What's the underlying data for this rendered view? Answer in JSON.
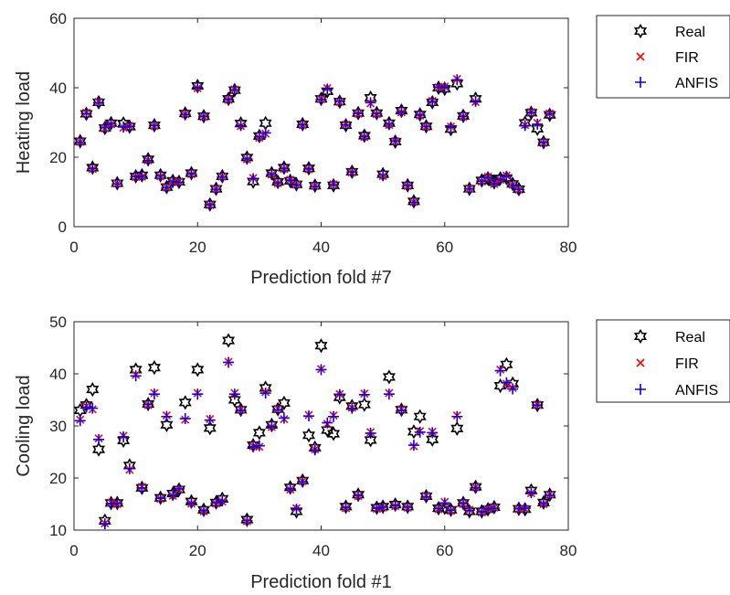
{
  "colors": {
    "real": "#000000",
    "fir": "#ff0000",
    "anfis": "#0000ff",
    "axis": "#262626"
  },
  "chart_data": [
    {
      "type": "scatter",
      "xlabel": "Prediction fold #7",
      "ylabel": "Heating load",
      "xlim": [
        0,
        80
      ],
      "ylim": [
        0,
        60
      ],
      "xticks": [
        0,
        20,
        40,
        60,
        80
      ],
      "yticks": [
        0,
        20,
        40,
        60
      ],
      "grid": false,
      "legend_position": "outside-right",
      "series": [
        {
          "name": "Real",
          "marker": "hexagram",
          "color": "#000000",
          "x": [
            1,
            2,
            3,
            4,
            5,
            6,
            7,
            8,
            9,
            10,
            11,
            12,
            13,
            14,
            15,
            16,
            17,
            18,
            19,
            20,
            21,
            22,
            23,
            24,
            25,
            26,
            27,
            28,
            29,
            30,
            31,
            32,
            33,
            34,
            35,
            36,
            37,
            38,
            39,
            40,
            41,
            42,
            43,
            44,
            45,
            46,
            47,
            48,
            49,
            50,
            51,
            52,
            53,
            54,
            55,
            56,
            57,
            58,
            59,
            60,
            61,
            62,
            63,
            64,
            65,
            66,
            67,
            68,
            69,
            70,
            71,
            72,
            73,
            74,
            75,
            76,
            77
          ],
          "y": [
            24.6,
            32.5,
            17,
            35.8,
            28.4,
            29.8,
            12.5,
            29.7,
            28.8,
            14.5,
            14.8,
            19.4,
            29.2,
            14.8,
            11.4,
            13.2,
            12.9,
            32.6,
            15.4,
            40.5,
            31.8,
            6.4,
            10.9,
            14.5,
            36.8,
            39.3,
            29.7,
            19.9,
            13,
            26.1,
            29.8,
            15.4,
            12.9,
            17,
            13.2,
            12.2,
            29.5,
            16.8,
            11.8,
            36.8,
            39,
            11.9,
            36,
            29.2,
            15.8,
            32.7,
            26.2,
            37.1,
            32.7,
            15.1,
            29.8,
            24.5,
            33.4,
            11.9,
            7.3,
            32.3,
            28.9,
            35.8,
            40,
            39.7,
            28.1,
            41.2,
            31.9,
            10.9,
            36.8,
            13.3,
            13.9,
            12.8,
            13.9,
            14,
            12.3,
            10.8,
            29.9,
            32.8,
            28.2,
            24.3,
            32.2
          ]
        },
        {
          "name": "FIR",
          "marker": "x",
          "color": "#ff0000",
          "x": [
            1,
            2,
            3,
            4,
            5,
            6,
            7,
            8,
            9,
            10,
            11,
            12,
            13,
            14,
            15,
            16,
            17,
            18,
            19,
            20,
            21,
            22,
            23,
            24,
            25,
            26,
            27,
            28,
            29,
            30,
            31,
            32,
            33,
            34,
            35,
            36,
            37,
            38,
            39,
            40,
            41,
            42,
            43,
            44,
            45,
            46,
            47,
            48,
            49,
            50,
            51,
            52,
            53,
            54,
            55,
            56,
            57,
            58,
            59,
            60,
            61,
            62,
            63,
            64,
            65,
            66,
            67,
            68,
            69,
            70,
            71,
            72,
            73,
            74,
            75,
            76,
            77
          ],
          "y": [
            24.4,
            32.8,
            16.6,
            35.9,
            28.3,
            29.5,
            12.4,
            28.5,
            29,
            14.3,
            14.4,
            19.1,
            29,
            14.5,
            11.3,
            12.8,
            13,
            32.4,
            15.1,
            39.9,
            31.6,
            6.2,
            10.8,
            14.4,
            36.5,
            39.5,
            29,
            19.4,
            14,
            25.6,
            26.8,
            15,
            12.5,
            16.6,
            13.5,
            12.1,
            29.2,
            16.5,
            11.7,
            36.7,
            39.9,
            12.2,
            35.9,
            29.4,
            15.6,
            32.5,
            25.8,
            35.5,
            32.4,
            14.6,
            29.3,
            24.6,
            32.9,
            11.7,
            7.1,
            32,
            28.7,
            36.2,
            40.1,
            40.3,
            28.8,
            42.5,
            31.6,
            11,
            35.9,
            13,
            14.4,
            12.3,
            13.5,
            14.7,
            12.1,
            10.6,
            29.3,
            33,
            29.9,
            24.1,
            32.6
          ]
        },
        {
          "name": "ANFIS",
          "marker": "+",
          "color": "#0000ff",
          "x": [
            1,
            2,
            3,
            4,
            5,
            6,
            7,
            8,
            9,
            10,
            11,
            12,
            13,
            14,
            15,
            16,
            17,
            18,
            19,
            20,
            21,
            22,
            23,
            24,
            25,
            26,
            27,
            28,
            29,
            30,
            31,
            32,
            33,
            34,
            35,
            36,
            37,
            38,
            39,
            40,
            41,
            42,
            43,
            44,
            45,
            46,
            47,
            48,
            49,
            50,
            51,
            52,
            53,
            54,
            55,
            56,
            57,
            58,
            59,
            60,
            61,
            62,
            63,
            64,
            65,
            66,
            67,
            68,
            69,
            70,
            71,
            72,
            73,
            74,
            75,
            76,
            77
          ],
          "y": [
            24.3,
            32.6,
            16.7,
            35.7,
            28.5,
            29.6,
            12.3,
            28.7,
            28.9,
            14.4,
            14.5,
            19,
            29.1,
            14.6,
            11.2,
            12.9,
            12.8,
            32.3,
            15.2,
            40.1,
            31.7,
            6.3,
            10.7,
            14.3,
            36.6,
            39.4,
            29.1,
            19.5,
            13.8,
            25.8,
            27,
            15.1,
            12.6,
            16.7,
            13.4,
            12,
            29.3,
            16.6,
            11.6,
            36.6,
            39.6,
            12.1,
            36.1,
            29.3,
            15.7,
            32.6,
            25.9,
            35.7,
            32.5,
            14.8,
            29.5,
            24.7,
            33,
            11.8,
            7,
            32.1,
            28.8,
            36,
            40.2,
            40.1,
            28.6,
            42.3,
            31.7,
            10.9,
            36.1,
            13.1,
            14.2,
            12.4,
            13.6,
            14.5,
            12,
            10.7,
            29.1,
            32.9,
            29.5,
            24.2,
            32.5
          ]
        }
      ]
    },
    {
      "type": "scatter",
      "xlabel": "Prediction fold #1",
      "ylabel": "Cooling load",
      "xlim": [
        0,
        80
      ],
      "ylim": [
        10,
        50
      ],
      "xticks": [
        0,
        20,
        40,
        60,
        80
      ],
      "yticks": [
        10,
        20,
        30,
        40,
        50
      ],
      "grid": false,
      "legend_position": "outside-right",
      "series": [
        {
          "name": "Real",
          "marker": "hexagram",
          "color": "#000000",
          "x": [
            1,
            2,
            3,
            4,
            5,
            6,
            7,
            8,
            9,
            10,
            11,
            12,
            13,
            14,
            15,
            16,
            17,
            18,
            19,
            20,
            21,
            22,
            23,
            24,
            25,
            26,
            27,
            28,
            29,
            30,
            31,
            32,
            33,
            34,
            35,
            36,
            37,
            38,
            39,
            40,
            41,
            42,
            43,
            44,
            45,
            46,
            47,
            48,
            49,
            50,
            51,
            52,
            53,
            54,
            55,
            56,
            57,
            58,
            59,
            60,
            61,
            62,
            63,
            64,
            65,
            66,
            67,
            68,
            69,
            70,
            71,
            72,
            73,
            74,
            75,
            76,
            77
          ],
          "y": [
            33,
            34,
            37,
            25.5,
            11.8,
            15.2,
            15.2,
            27.2,
            22.4,
            40.8,
            18.1,
            34.2,
            41.2,
            16.2,
            30.2,
            17,
            17.8,
            34.5,
            15.5,
            40.8,
            13.9,
            29.6,
            15.3,
            16,
            46.4,
            35,
            33.1,
            12,
            26.3,
            28.7,
            37.3,
            30.2,
            33.2,
            34.4,
            18.2,
            13.6,
            19.5,
            28.2,
            25.8,
            45.4,
            29.2,
            28.5,
            35.5,
            14.5,
            33.8,
            16.8,
            34.1,
            27.3,
            14.3,
            14.5,
            39.4,
            14.9,
            33.1,
            14.5,
            28.9,
            31.8,
            16.5,
            27.4,
            14.2,
            14.3,
            13.9,
            29.5,
            15.2,
            13.6,
            18.3,
            13.6,
            14,
            14.4,
            37.7,
            41.8,
            38.1,
            14.1,
            14,
            17.6,
            34,
            15.3,
            16.8
          ]
        },
        {
          "name": "FIR",
          "marker": "x",
          "color": "#ff0000",
          "x": [
            1,
            2,
            3,
            4,
            5,
            6,
            7,
            8,
            9,
            10,
            11,
            12,
            13,
            14,
            15,
            16,
            17,
            18,
            19,
            20,
            21,
            22,
            23,
            24,
            25,
            26,
            27,
            28,
            29,
            30,
            31,
            32,
            33,
            34,
            35,
            36,
            37,
            38,
            39,
            40,
            41,
            42,
            43,
            44,
            45,
            46,
            47,
            48,
            49,
            50,
            51,
            52,
            53,
            54,
            55,
            56,
            57,
            58,
            59,
            60,
            61,
            62,
            63,
            64,
            65,
            66,
            67,
            68,
            69,
            70,
            71,
            72,
            73,
            74,
            75,
            76,
            77
          ],
          "y": [
            31.2,
            33.8,
            33.2,
            27.6,
            11.3,
            15.3,
            15,
            28.1,
            21.6,
            39.8,
            18.3,
            34,
            36.3,
            16,
            32,
            16.6,
            17.8,
            31.2,
            15.1,
            36.3,
            13.6,
            31.3,
            15.1,
            15.5,
            42.3,
            36.3,
            33.1,
            11.7,
            26.1,
            26,
            36.5,
            29.8,
            33.3,
            31.3,
            17.8,
            14.2,
            19.4,
            32.1,
            25.5,
            40.9,
            30.4,
            32,
            36.1,
            14.2,
            33.5,
            16.5,
            36.2,
            28.8,
            14.1,
            14.3,
            36.3,
            14.6,
            33.2,
            14.3,
            26.1,
            29,
            16.6,
            28.9,
            14,
            15.4,
            13.7,
            32,
            15,
            13.9,
            18.2,
            13.4,
            14,
            14.3,
            40.8,
            38.1,
            37.3,
            14,
            14.1,
            17.1,
            34.1,
            15,
            16.8
          ]
        },
        {
          "name": "ANFIS",
          "marker": "+",
          "color": "#0000ff",
          "x": [
            1,
            2,
            3,
            4,
            5,
            6,
            7,
            8,
            9,
            10,
            11,
            12,
            13,
            14,
            15,
            16,
            17,
            18,
            19,
            20,
            21,
            22,
            23,
            24,
            25,
            26,
            27,
            28,
            29,
            30,
            31,
            32,
            33,
            34,
            35,
            36,
            37,
            38,
            39,
            40,
            41,
            42,
            43,
            44,
            45,
            46,
            47,
            48,
            49,
            50,
            51,
            52,
            53,
            54,
            55,
            56,
            57,
            58,
            59,
            60,
            61,
            62,
            63,
            64,
            65,
            66,
            67,
            68,
            69,
            70,
            71,
            72,
            73,
            74,
            75,
            76,
            77
          ],
          "y": [
            31,
            33.6,
            33.4,
            27.4,
            11.2,
            15.1,
            15.1,
            27.9,
            21.8,
            39.6,
            18.1,
            34.1,
            36.1,
            16.1,
            31.8,
            16.7,
            17.9,
            31.4,
            15.2,
            36.1,
            13.7,
            31.1,
            15.2,
            15.6,
            42.2,
            36.1,
            33,
            11.8,
            26,
            26.2,
            36.3,
            29.9,
            33.1,
            31.5,
            17.9,
            14,
            19.3,
            31.9,
            25.4,
            40.8,
            30.6,
            31.8,
            36,
            14.3,
            33.4,
            16.6,
            36,
            28.6,
            14.2,
            14.4,
            36.1,
            14.7,
            33,
            14.4,
            26.3,
            28.8,
            16.4,
            28.7,
            14.1,
            15.2,
            13.8,
            31.8,
            15.1,
            13.8,
            18.1,
            13.5,
            14.1,
            14.2,
            40.6,
            38.3,
            37.1,
            14.1,
            14.2,
            17.2,
            34,
            15.1,
            16.7
          ]
        }
      ]
    }
  ]
}
